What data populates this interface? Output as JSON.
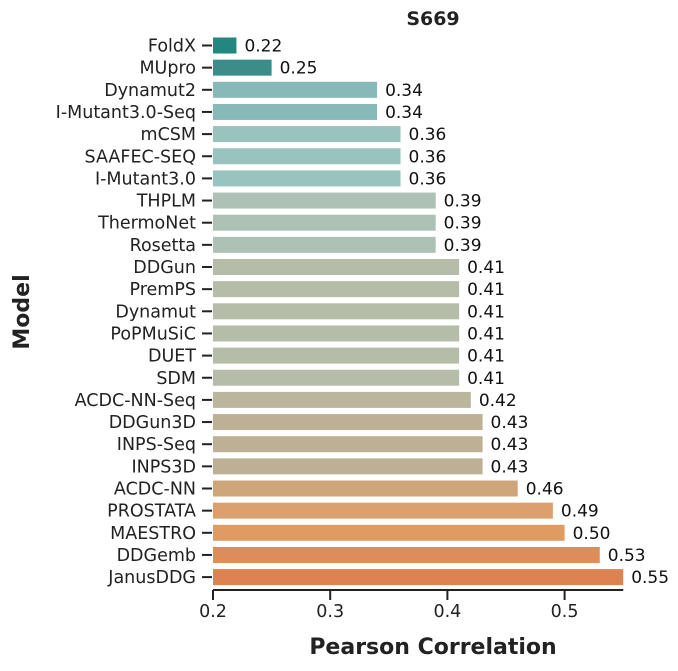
{
  "chart_data": {
    "type": "bar",
    "orientation": "horizontal",
    "title": "S669",
    "xlabel": "Pearson Correlation",
    "ylabel": "Model",
    "xlim": [
      0.2,
      0.55
    ],
    "xticks": [
      "0.2",
      "0.3",
      "0.4",
      "0.5"
    ],
    "grid": false,
    "categories": [
      "FoldX",
      "MUpro",
      "Dynamut2",
      "I-Mutant3.0-Seq",
      "mCSM",
      "SAAFEC-SEQ",
      "I-Mutant3.0",
      "THPLM",
      "ThermoNet",
      "Rosetta",
      "DDGun",
      "PremPS",
      "Dynamut",
      "PoPMuSiC",
      "DUET",
      "SDM",
      "ACDC-NN-Seq",
      "DDGun3D",
      "INPS-Seq",
      "INPS3D",
      "ACDC-NN",
      "PROSTATA",
      "MAESTRO",
      "DDGemb",
      "JanusDDG"
    ],
    "values": [
      0.22,
      0.25,
      0.34,
      0.34,
      0.36,
      0.36,
      0.36,
      0.39,
      0.39,
      0.39,
      0.41,
      0.41,
      0.41,
      0.41,
      0.41,
      0.41,
      0.42,
      0.43,
      0.43,
      0.43,
      0.46,
      0.49,
      0.5,
      0.53,
      0.55
    ],
    "value_labels": [
      "0.22",
      "0.25",
      "0.34",
      "0.34",
      "0.36",
      "0.36",
      "0.36",
      "0.39",
      "0.39",
      "0.39",
      "0.41",
      "0.41",
      "0.41",
      "0.41",
      "0.41",
      "0.41",
      "0.42",
      "0.43",
      "0.43",
      "0.43",
      "0.46",
      "0.49",
      "0.50",
      "0.53",
      "0.55"
    ],
    "colors": [
      "#21877f",
      "#3a8d89",
      "#86b9b8",
      "#86b9b8",
      "#98c3bf",
      "#98c3bf",
      "#98c3bf",
      "#aec1b5",
      "#aec1b5",
      "#aec1b5",
      "#b5bca8",
      "#b5bca8",
      "#b5bca8",
      "#b5bca8",
      "#b5bca8",
      "#b5bca8",
      "#bbb59c",
      "#bdb094",
      "#bdb094",
      "#bdb094",
      "#cfa679",
      "#dba06d",
      "#df9b62",
      "#df8c56",
      "#dc8351"
    ]
  }
}
